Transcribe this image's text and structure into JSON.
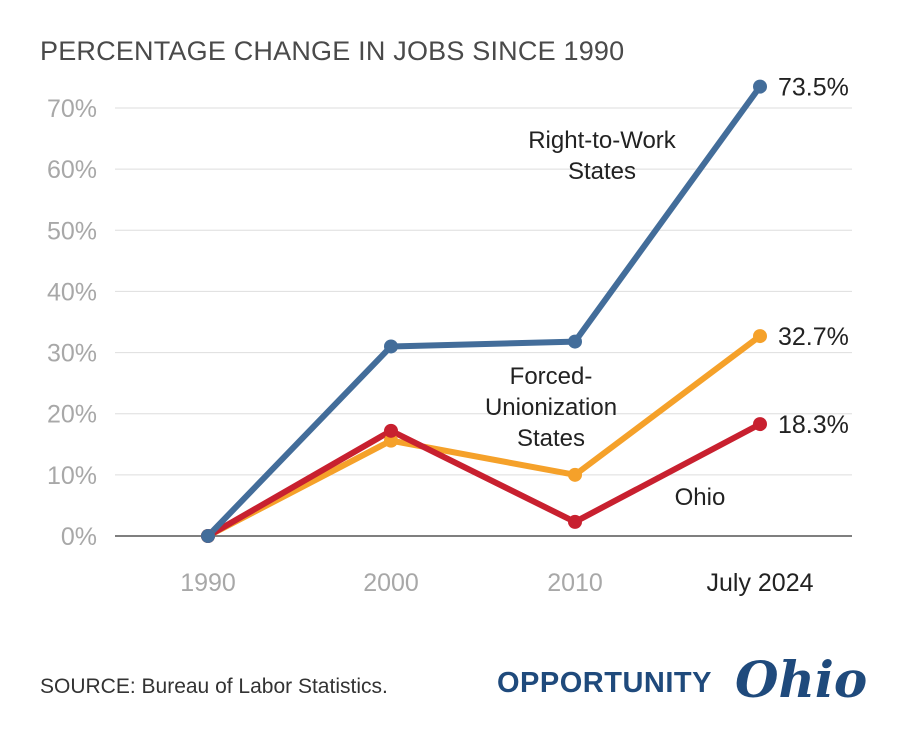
{
  "chart_data": {
    "type": "line",
    "title": "PERCENTAGE CHANGE IN JOBS SINCE 1990",
    "categories": [
      "1990",
      "2000",
      "2010",
      "July 2024"
    ],
    "ylim": [
      0,
      70
    ],
    "yticks": [
      "0%",
      "10%",
      "20%",
      "30%",
      "40%",
      "50%",
      "60%",
      "70%"
    ],
    "grid": true,
    "series": [
      {
        "name": "Right-to-Work States",
        "label_lines": [
          "Right-to-Work",
          "States"
        ],
        "color": "#436d9a",
        "values": [
          0,
          31.0,
          31.8,
          73.5
        ],
        "end_label": "73.5%"
      },
      {
        "name": "Forced-Unionization States",
        "label_lines": [
          "Forced-",
          "Unionization",
          "States"
        ],
        "color": "#f5a12a",
        "values": [
          0,
          15.6,
          10.0,
          32.7
        ],
        "end_label": "32.7%"
      },
      {
        "name": "Ohio",
        "label_lines": [
          "Ohio"
        ],
        "color": "#c8202f",
        "values": [
          0,
          17.2,
          2.3,
          18.3
        ],
        "end_label": "18.3%"
      }
    ]
  },
  "footer": {
    "source": "SOURCE: Bureau of Labor Statistics.",
    "logo_word": "OPPORTUNITY",
    "logo_script": "Ohio"
  }
}
